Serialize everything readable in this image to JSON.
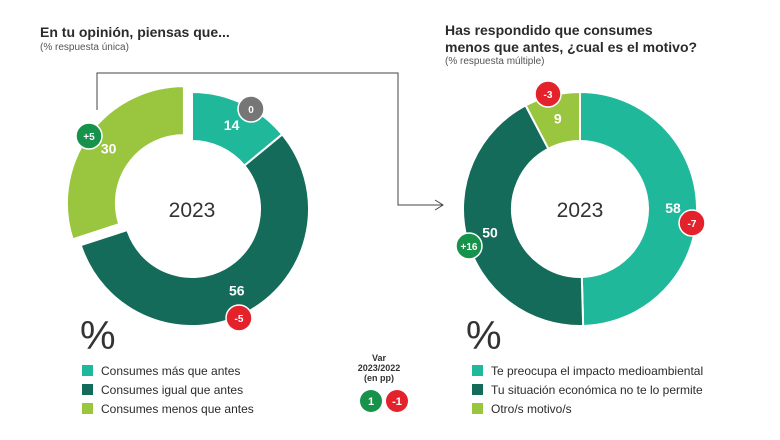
{
  "colors": {
    "teal": "#1fb89a",
    "dark_green": "#156b5a",
    "light_green": "#9ac63f",
    "grey": "#767676",
    "positive": "#17924a",
    "negative": "#e4222c"
  },
  "chart_data": [
    {
      "type": "pie",
      "title": "En tu opinión, piensas que...",
      "subtitle": "(% respuesta única)",
      "center_label": "2023",
      "unit_symbol": "%",
      "slices": [
        {
          "name": "Consumes más que antes",
          "value": 14,
          "label": "14",
          "var": "0",
          "color": "#1fb89a"
        },
        {
          "name": "Consumes igual que antes",
          "value": 56,
          "label": "56",
          "var": "-5",
          "color": "#156b5a"
        },
        {
          "name": "Consumes menos que antes",
          "value": 30,
          "label": "30",
          "var": "+5",
          "color": "#9ac63f"
        }
      ]
    },
    {
      "type": "pie",
      "title": "Has respondido que consumes menos que antes, ¿cual es el motivo?",
      "subtitle": "(% respuesta múltiple)",
      "center_label": "2023",
      "unit_symbol": "%",
      "slices": [
        {
          "name": "Te preocupa el impacto medioambiental",
          "value": 58,
          "label": "58",
          "var": "-7",
          "color": "#1fb89a"
        },
        {
          "name": "Tu situación económica no te lo permite",
          "value": 50,
          "label": "50",
          "var": "+16",
          "color": "#156b5a"
        },
        {
          "name": "Otro/s motivo/s",
          "value": 9,
          "label": "9",
          "var": "-3",
          "color": "#9ac63f"
        }
      ]
    }
  ],
  "variation_legend": {
    "lines": [
      "Var",
      "2023/2022",
      "(en pp)"
    ],
    "positive_example": "1",
    "negative_example": "-1"
  }
}
